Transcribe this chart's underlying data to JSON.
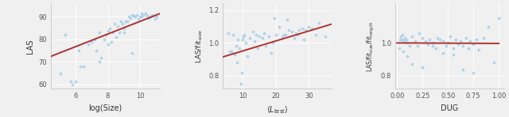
{
  "plot1": {
    "xlabel": "log(Size)",
    "ylabel": "LAS",
    "xlim": [
      4.5,
      11.2
    ],
    "ylim": [
      58,
      96
    ],
    "yticks": [
      60,
      70,
      80,
      90
    ],
    "xticks": [
      6,
      8,
      10
    ],
    "line_x": [
      4.5,
      11.2
    ],
    "line_y": [
      72.5,
      91.5
    ],
    "scatter_x": [
      5.1,
      5.4,
      5.7,
      6.0,
      6.2,
      6.5,
      6.8,
      7.0,
      7.2,
      7.5,
      7.5,
      7.8,
      8.0,
      8.0,
      8.1,
      8.2,
      8.3,
      8.5,
      8.6,
      8.8,
      8.9,
      9.0,
      9.1,
      9.2,
      9.3,
      9.4,
      9.5,
      9.6,
      9.7,
      9.8,
      9.9,
      10.0,
      10.1,
      10.1,
      10.2,
      10.3,
      10.4,
      10.5,
      10.6,
      10.7,
      10.8,
      10.9,
      11.0,
      7.3,
      7.6,
      8.7,
      9.0,
      6.3,
      7.9,
      8.4,
      9.5,
      5.8
    ],
    "scatter_y": [
      65.0,
      82.0,
      61.5,
      61.5,
      75.0,
      68.0,
      78.0,
      79.0,
      80.0,
      70.0,
      83.0,
      80.0,
      84.0,
      78.0,
      85.0,
      79.0,
      83.0,
      81.0,
      86.0,
      88.0,
      87.0,
      83.0,
      88.0,
      88.0,
      90.0,
      89.5,
      91.0,
      90.5,
      90.0,
      91.0,
      89.0,
      90.0,
      91.5,
      90.0,
      91.0,
      91.5,
      90.5,
      89.5,
      90.0,
      91.0,
      90.5,
      89.0,
      90.0,
      75.0,
      72.0,
      83.0,
      85.0,
      68.0,
      82.0,
      87.0,
      74.0,
      60.0
    ]
  },
  "plot2": {
    "xlim": [
      4,
      37
    ],
    "ylim": [
      0.72,
      1.24
    ],
    "yticks": [
      0.8,
      1.0,
      1.2
    ],
    "xticks": [
      10,
      20,
      30
    ],
    "line_x": [
      4,
      37
    ],
    "line_y": [
      0.915,
      1.115
    ],
    "scatter_x": [
      5.5,
      6.0,
      7.0,
      8.0,
      8.5,
      9.0,
      9.5,
      10.0,
      10.5,
      11.0,
      12.0,
      13.0,
      14.0,
      15.0,
      16.0,
      17.0,
      18.0,
      19.0,
      20.0,
      21.0,
      22.0,
      23.0,
      24.0,
      25.0,
      26.0,
      27.0,
      28.0,
      29.0,
      30.0,
      31.0,
      32.0,
      33.0,
      35.0,
      6.5,
      7.5,
      11.5,
      13.5,
      16.5,
      19.5,
      22.5,
      25.5,
      28.5,
      8.2,
      10.2,
      14.5,
      18.5,
      23.5,
      26.5,
      20.5,
      9.8
    ],
    "scatter_y": [
      1.06,
      0.95,
      1.05,
      0.98,
      1.02,
      0.97,
      0.75,
      1.02,
      1.05,
      1.0,
      1.03,
      1.07,
      1.05,
      1.04,
      1.03,
      0.98,
      1.04,
      1.0,
      1.05,
      1.1,
      1.04,
      1.05,
      1.08,
      1.07,
      1.06,
      1.08,
      1.09,
      1.08,
      1.1,
      1.09,
      1.05,
      1.12,
      1.04,
      0.95,
      0.93,
      0.92,
      1.01,
      1.06,
      1.15,
      1.05,
      1.03,
      1.02,
      0.88,
      1.04,
      0.97,
      0.94,
      1.14,
      1.05,
      0.68,
      0.82
    ]
  },
  "plot3": {
    "xlabel": "DUG",
    "xlim": [
      -0.02,
      1.05
    ],
    "ylim": [
      0.72,
      1.24
    ],
    "yticks": [
      0.8,
      1.0
    ],
    "xticks": [
      0.0,
      0.25,
      0.5,
      0.75,
      1.0
    ],
    "line_x": [
      0.0,
      1.0
    ],
    "line_y": [
      1.0,
      0.997
    ],
    "scatter_x": [
      0.02,
      0.03,
      0.04,
      0.05,
      0.06,
      0.07,
      0.08,
      0.09,
      0.1,
      0.12,
      0.15,
      0.18,
      0.2,
      0.22,
      0.25,
      0.28,
      0.3,
      0.32,
      0.35,
      0.38,
      0.4,
      0.42,
      0.45,
      0.48,
      0.5,
      0.52,
      0.55,
      0.58,
      0.6,
      0.62,
      0.65,
      0.68,
      0.7,
      0.72,
      0.75,
      0.78,
      0.8,
      0.85,
      0.9,
      0.95,
      1.0,
      0.05,
      0.1,
      0.15,
      0.25,
      0.35,
      0.45,
      0.55,
      0.65,
      0.75
    ],
    "scatter_y": [
      0.97,
      1.02,
      1.04,
      1.05,
      0.95,
      1.01,
      1.03,
      1.02,
      1.0,
      0.98,
      1.04,
      1.01,
      0.98,
      1.06,
      1.03,
      1.01,
      0.99,
      1.02,
      1.0,
      0.97,
      1.03,
      1.02,
      1.01,
      0.98,
      1.0,
      1.04,
      0.97,
      1.02,
      0.99,
      1.01,
      0.98,
      1.03,
      0.97,
      1.01,
      0.99,
      1.02,
      0.96,
      1.03,
      1.1,
      0.88,
      1.15,
      1.02,
      0.92,
      0.87,
      0.85,
      0.98,
      0.94,
      0.93,
      0.84,
      0.82
    ]
  },
  "scatter_color": "#a8cfe8",
  "line_color": "#b03030",
  "scatter_size": 7,
  "scatter_alpha": 0.9,
  "line_width": 1.4,
  "bg_color": "#f0f0f0",
  "spine_color": "#cccccc",
  "tick_color": "#555555",
  "grid_color": "#ffffff",
  "fig_bg": "#f0f0f0"
}
